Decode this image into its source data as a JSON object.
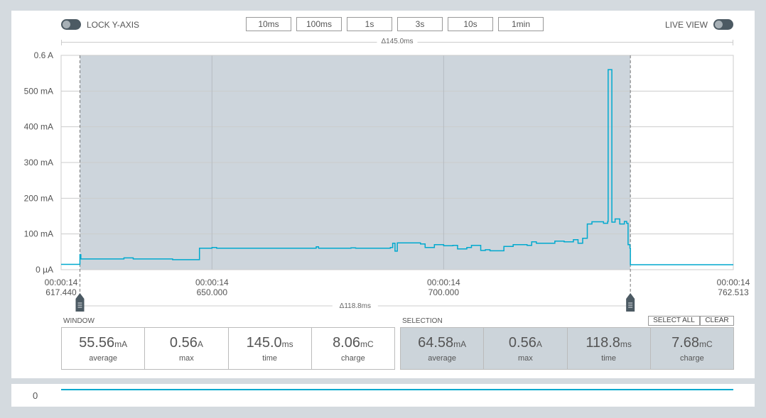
{
  "controls": {
    "lock_label": "LOCK Y-AXIS",
    "live_label": "LIVE VIEW",
    "zoom_buttons": [
      "10ms",
      "100ms",
      "1s",
      "3s",
      "10s",
      "1min"
    ]
  },
  "window_delta": "Δ145.0ms",
  "selection_delta": "Δ118.8ms",
  "chart_data": {
    "type": "line",
    "y_ticks": [
      "0.6 A",
      "500 mA",
      "400 mA",
      "300 mA",
      "200 mA",
      "100 mA",
      "0 µA"
    ],
    "x_ticks": [
      {
        "time": "00:00:14",
        "ms": "617.440"
      },
      {
        "time": "00:00:14",
        "ms": "650.000"
      },
      {
        "time": "00:00:14",
        "ms": "700.000"
      },
      {
        "time": "00:00:14",
        "ms": "762.513"
      }
    ],
    "xlim_ms": [
      617.44,
      762.513
    ],
    "ylim_mA": [
      0,
      600
    ],
    "selection_ms": [
      621.5,
      740.3
    ],
    "series": [
      {
        "color": "#00a9ce",
        "points_ms_mA": [
          [
            617.44,
            15
          ],
          [
            621.4,
            15
          ],
          [
            621.5,
            42
          ],
          [
            621.7,
            30
          ],
          [
            630,
            30
          ],
          [
            631,
            33
          ],
          [
            633,
            30
          ],
          [
            641.5,
            28
          ],
          [
            646.8,
            28
          ],
          [
            647.3,
            60
          ],
          [
            648,
            60
          ],
          [
            650,
            62
          ],
          [
            651,
            60
          ],
          [
            672,
            60
          ],
          [
            672.5,
            64
          ],
          [
            673,
            60
          ],
          [
            680,
            61
          ],
          [
            681,
            60
          ],
          [
            688.5,
            62
          ],
          [
            689,
            74
          ],
          [
            689.5,
            52
          ],
          [
            690,
            75
          ],
          [
            695,
            72
          ],
          [
            696,
            62
          ],
          [
            698,
            70
          ],
          [
            700,
            67
          ],
          [
            702,
            68
          ],
          [
            703,
            58
          ],
          [
            705,
            62
          ],
          [
            706,
            68
          ],
          [
            708,
            54
          ],
          [
            709,
            56
          ],
          [
            710,
            53
          ],
          [
            713,
            65
          ],
          [
            715,
            70
          ],
          [
            718,
            68
          ],
          [
            719,
            78
          ],
          [
            720,
            74
          ],
          [
            724,
            80
          ],
          [
            726,
            78
          ],
          [
            728,
            84
          ],
          [
            729,
            74
          ],
          [
            730,
            88
          ],
          [
            731,
            128
          ],
          [
            732,
            134
          ],
          [
            734.5,
            130
          ],
          [
            735.4,
            135
          ],
          [
            735.5,
            560
          ],
          [
            736.2,
            560
          ],
          [
            736.3,
            133
          ],
          [
            737,
            142
          ],
          [
            738,
            128
          ],
          [
            739,
            135
          ],
          [
            739.5,
            130
          ],
          [
            739.8,
            70
          ],
          [
            740.2,
            60
          ],
          [
            740.3,
            14
          ],
          [
            762.513,
            14
          ]
        ]
      }
    ]
  },
  "window_stats": {
    "title": "WINDOW",
    "items": [
      {
        "value": "55.56",
        "unit": "mA",
        "label": "average"
      },
      {
        "value": "0.56",
        "unit": "A",
        "label": "max"
      },
      {
        "value": "145.0",
        "unit": "ms",
        "label": "time"
      },
      {
        "value": "8.06",
        "unit": "mC",
        "label": "charge"
      }
    ]
  },
  "selection_stats": {
    "title": "SELECTION",
    "select_all": "SELECT ALL",
    "clear": "CLEAR",
    "items": [
      {
        "value": "64.58",
        "unit": "mA",
        "label": "average"
      },
      {
        "value": "0.56",
        "unit": "A",
        "label": "max"
      },
      {
        "value": "118.8",
        "unit": "ms",
        "label": "time"
      },
      {
        "value": "7.68",
        "unit": "mC",
        "label": "charge"
      }
    ]
  },
  "minimap": {
    "label": "0",
    "color": "#00a9ce"
  }
}
